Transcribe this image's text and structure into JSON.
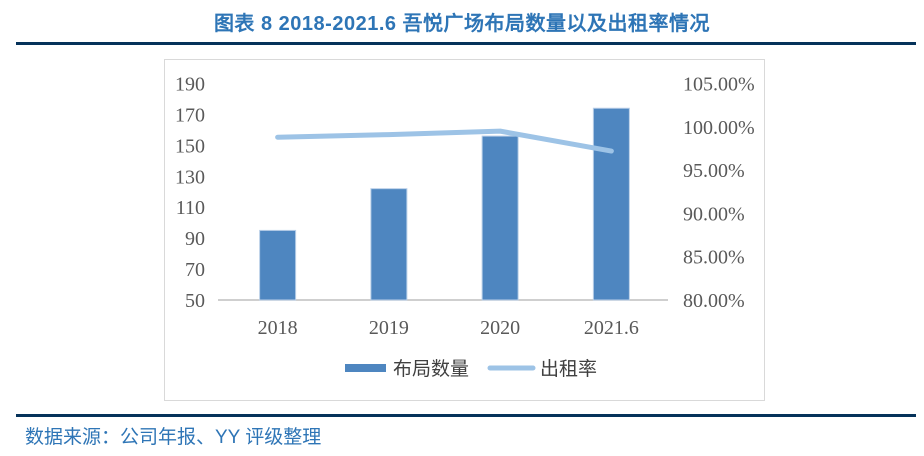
{
  "header": {
    "title": "图表 8 2018-2021.6 吾悦广场布局数量以及出租率情况"
  },
  "footer": {
    "source": "数据来源：公司年报、YY 评级整理"
  },
  "colors": {
    "accent_blue": "#2E75B6",
    "navy_rule": "#05325A",
    "bar": "#4E86C0",
    "bar_edge": "#B9CFE8",
    "line": "#9DC3E6",
    "tick_text": "#595959",
    "axis_line": "#BFBFBF",
    "frame": "#D9D9D9"
  },
  "chart_data": {
    "type": "bar",
    "subtype": "combo-bar-line",
    "title": "图表 8 2018-2021.6 吾悦广场布局数量以及出租率情况",
    "categories": [
      "2018",
      "2019",
      "2020",
      "2021.6"
    ],
    "series": [
      {
        "name": "布局数量",
        "type": "bar",
        "axis": "left",
        "values": [
          95,
          122,
          156,
          174
        ],
        "color": "#4E86C0"
      },
      {
        "name": "出租率",
        "type": "line",
        "axis": "right",
        "values": [
          98.8,
          99.1,
          99.5,
          97.2
        ],
        "unit": "%",
        "color": "#9DC3E6"
      }
    ],
    "left_axis": {
      "min": 50,
      "max": 190,
      "ticks": [
        190,
        170,
        150,
        130,
        110,
        90,
        70,
        50
      ]
    },
    "right_axis": {
      "min": 80,
      "max": 105,
      "ticks": [
        "105.00%",
        "100.00%",
        "95.00%",
        "90.00%",
        "85.00%",
        "80.00%"
      ]
    },
    "xlabel": "",
    "ylabel": "",
    "grid": false,
    "legend_position": "bottom"
  }
}
